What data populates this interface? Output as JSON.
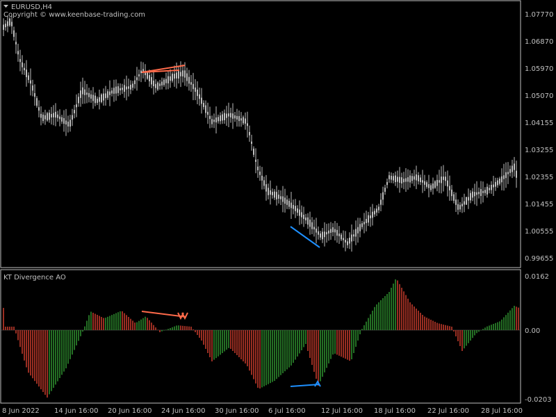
{
  "window": {
    "symbol_label": "EURUSD,H4",
    "copyright": "Copyright © www.keenbase-trading.com",
    "menu_icon": "triangle-down-icon"
  },
  "colors": {
    "background": "#000000",
    "frame": "#c0c0c0",
    "candle": "#c0c0c0",
    "text": "#c0c0c0",
    "bear_divergence": "#ff6a4a",
    "bull_divergence": "#1e90ff",
    "ao_up": "#2e8b2e",
    "ao_down": "#c0392b"
  },
  "price_panel": {
    "price_labels": [
      "1.07770",
      "1.06870",
      "1.05970",
      "1.05070",
      "1.04155",
      "1.03255",
      "1.02355",
      "1.01455",
      "1.00555",
      "0.99655"
    ]
  },
  "indicator_panel": {
    "title": "KT Divergence AO",
    "value_labels": [
      "0.0162",
      "0.00",
      "-0.0203"
    ]
  },
  "time_axis": {
    "labels": [
      "8 Jun 2022",
      "14 Jun 16:00",
      "20 Jun 16:00",
      "24 Jun 16:00",
      "30 Jun 16:00",
      "6 Jul 16:00",
      "12 Jul 16:00",
      "18 Jul 16:00",
      "22 Jul 16:00",
      "28 Jul 16:00"
    ]
  }
}
